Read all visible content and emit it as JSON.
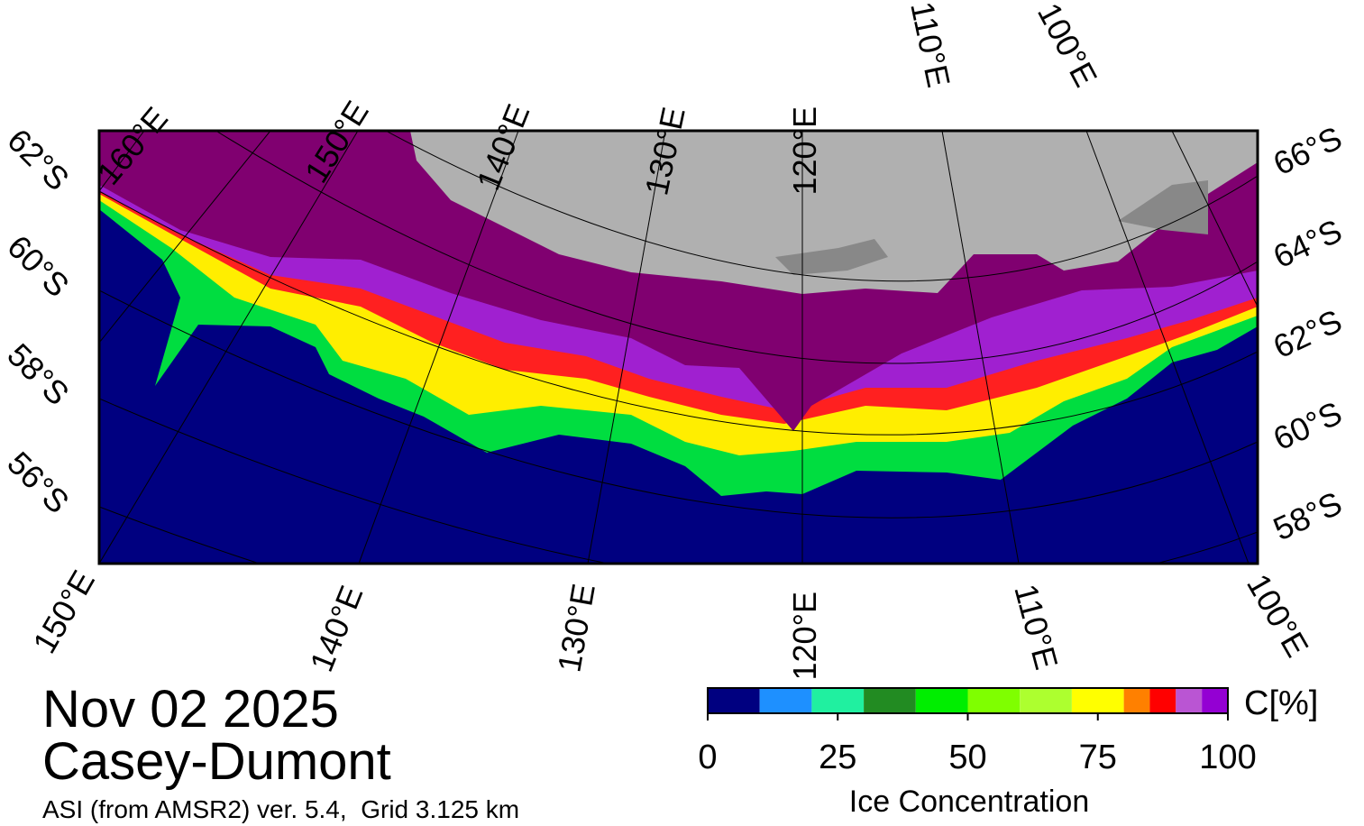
{
  "title": "Nov 02 2025",
  "region": "Casey-Dumont",
  "source": "ASI (from AMSR2) ver. 5.4,  Grid 3.125 km",
  "graticule": {
    "top_labels": [
      "160°E",
      "150°E",
      "140°E",
      "130°E",
      "120°E",
      "110°E",
      "100°E"
    ],
    "left_labels": [
      "62°S",
      "60°S",
      "58°S",
      "56°S"
    ],
    "right_labels": [
      "66°S",
      "64°S",
      "62°S",
      "60°S",
      "58°S"
    ],
    "bottom_labels": [
      "150°E",
      "140°E",
      "130°E",
      "120°E",
      "110°E",
      "100°E"
    ]
  },
  "colorbar": {
    "range": [
      0,
      100
    ],
    "bounds": [
      0,
      10,
      20,
      30,
      40,
      50,
      60,
      70,
      80,
      85,
      90,
      95,
      100
    ],
    "colors": [
      "#000080",
      "#1e90ff",
      "#20f0a0",
      "#228b22",
      "#00ee00",
      "#7fff00",
      "#adff2f",
      "#ffff00",
      "#ff8000",
      "#ff0000",
      "#ba55d3",
      "#9400d3"
    ],
    "ticks": [
      0,
      25,
      50,
      75,
      100
    ],
    "label": "Ice Concentration",
    "unit": "C[%]"
  }
}
